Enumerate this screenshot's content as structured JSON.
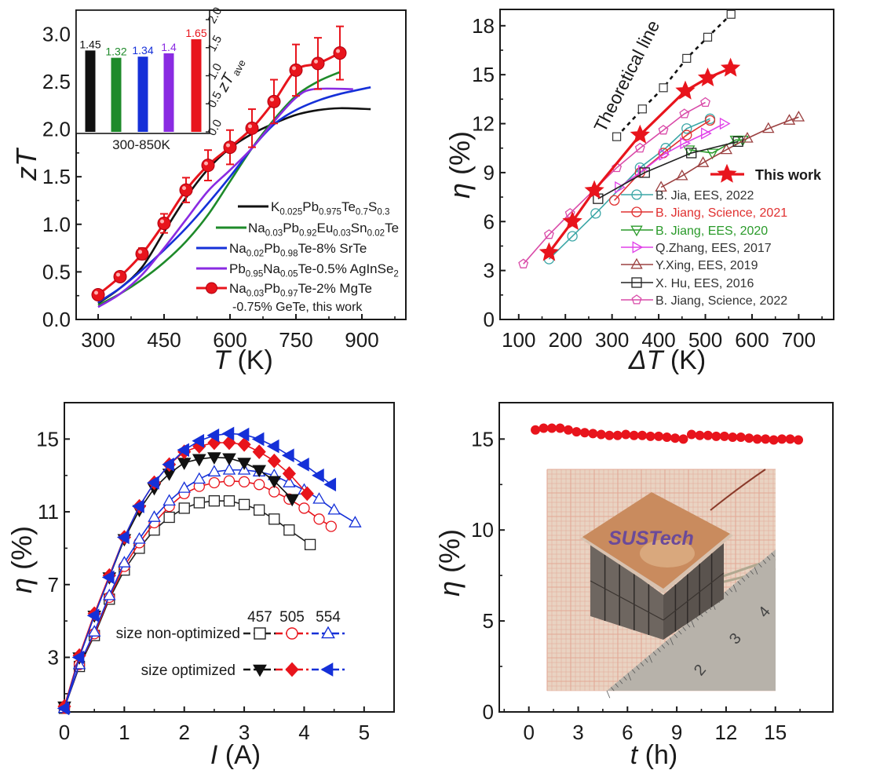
{
  "chart_data": [
    {
      "type": "line",
      "xlabel": "T (K)",
      "ylabel": "zT",
      "xlim": [
        250,
        1000
      ],
      "ylim": [
        0,
        3.25
      ],
      "xticks": [
        300,
        450,
        600,
        750,
        900
      ],
      "xtick_labels": [
        "300",
        "450",
        "600",
        "750",
        "900"
      ],
      "yticks": [
        0,
        0.5,
        1,
        1.5,
        2,
        2.5,
        3
      ],
      "ytick_labels": [
        "0.0",
        "0.5",
        "1.0",
        "1.5",
        "2.0",
        "2.5",
        "3.0"
      ],
      "grid": false,
      "legend_placement": "bottom-right",
      "series": [
        {
          "name": "K0.025Pb0.975Te0.7S0.3",
          "color": "#111111",
          "style": "line",
          "x": [
            300,
            350,
            400,
            450,
            500,
            550,
            600,
            650,
            700,
            750,
            800,
            850,
            920
          ],
          "y": [
            0.17,
            0.33,
            0.55,
            0.92,
            1.28,
            1.58,
            1.8,
            1.95,
            2.06,
            2.15,
            2.2,
            2.22,
            2.21
          ]
        },
        {
          "name": "Na0.03Pb0.92Eu0.03Sn0.02Te",
          "color": "#1e8a2a",
          "style": "line",
          "x": [
            300,
            350,
            400,
            450,
            500,
            550,
            600,
            650,
            700,
            750,
            800,
            850
          ],
          "y": [
            0.15,
            0.27,
            0.42,
            0.6,
            0.82,
            1.1,
            1.45,
            1.8,
            2.1,
            2.35,
            2.5,
            2.6
          ]
        },
        {
          "name": "Na0.02Pb0.98Te-8% SrTe",
          "color": "#1530d8",
          "style": "line",
          "x": [
            300,
            350,
            400,
            450,
            500,
            550,
            600,
            650,
            700,
            750,
            800,
            850,
            920
          ],
          "y": [
            0.18,
            0.33,
            0.52,
            0.73,
            0.96,
            1.22,
            1.5,
            1.8,
            2.05,
            2.2,
            2.3,
            2.37,
            2.44
          ]
        },
        {
          "name": "Pb0.95Na0.05Te-0.5% AgInSe2",
          "color": "#8a2be2",
          "style": "line",
          "x": [
            300,
            350,
            400,
            450,
            500,
            550,
            600,
            650,
            700,
            750,
            790,
            880
          ],
          "y": [
            0.13,
            0.27,
            0.47,
            0.75,
            1.05,
            1.35,
            1.57,
            1.8,
            2.08,
            2.33,
            2.42,
            2.42
          ]
        },
        {
          "name": "Na0.03Pb0.97Te-2% MgTe",
          "name_line2": "-0.75% GeTe, this work",
          "color": "#e8141c",
          "style": "line-marker",
          "marker": "circle",
          "x": [
            300,
            350,
            400,
            450,
            500,
            550,
            600,
            650,
            700,
            750,
            800,
            850
          ],
          "y": [
            0.26,
            0.45,
            0.69,
            1.01,
            1.36,
            1.62,
            1.81,
            2.01,
            2.29,
            2.62,
            2.69,
            2.8
          ],
          "error": [
            0.03,
            0.04,
            0.06,
            0.1,
            0.13,
            0.16,
            0.18,
            0.2,
            0.23,
            0.27,
            0.27,
            0.28
          ]
        }
      ],
      "inset": {
        "type": "bar",
        "xlabel": "300-850K",
        "ylabel_main": "zT",
        "ylabel_sub": "ave",
        "ylim": [
          0,
          2.0
        ],
        "yticks": [
          0,
          0.5,
          1,
          1.5,
          2
        ],
        "ytick_labels": [
          "0.0",
          "0.5",
          "1.0",
          "1.5",
          "2.0"
        ],
        "values": [
          1.45,
          1.32,
          1.34,
          1.4,
          1.65
        ],
        "value_labels": [
          "1.45",
          "1.32",
          "1.34",
          "1.4",
          "1.65"
        ],
        "colors": [
          "#111111",
          "#1e8a2a",
          "#1530d8",
          "#8a2be2",
          "#e8141c"
        ]
      }
    },
    {
      "type": "line",
      "xlabel": "ΔT (K)",
      "ylabel": "η (%)",
      "xlim": [
        60,
        775
      ],
      "ylim": [
        0,
        19
      ],
      "xticks": [
        100,
        200,
        300,
        400,
        500,
        600,
        700
      ],
      "xtick_labels": [
        "100",
        "200",
        "300",
        "400",
        "500",
        "600",
        "700"
      ],
      "yticks": [
        0,
        3,
        6,
        9,
        12,
        15,
        18
      ],
      "ytick_labels": [
        "0",
        "3",
        "6",
        "9",
        "12",
        "15",
        "18"
      ],
      "grid": false,
      "legend_placement": "bottom-right",
      "annotation": "Theoretical line",
      "theoretical": {
        "color": "#111111",
        "marker": "square",
        "x": [
          310,
          365,
          410,
          460,
          505,
          555
        ],
        "y": [
          11.2,
          12.9,
          14.2,
          16.0,
          17.3,
          18.7
        ]
      },
      "series": [
        {
          "name": "This work",
          "color": "#e8141c",
          "marker": "star",
          "filled": true,
          "label_color": "#111111",
          "x": [
            165,
            215,
            262,
            360,
            457,
            505,
            554
          ],
          "y": [
            4.1,
            6.0,
            7.9,
            11.3,
            14.0,
            14.8,
            15.4
          ]
        },
        {
          "name": "B. Jia, EES, 2022",
          "color": "#3aa6a6",
          "marker": "circle",
          "label_color": "#333333",
          "x": [
            165,
            215,
            265,
            360,
            415,
            460,
            510
          ],
          "y": [
            3.7,
            5.1,
            6.5,
            9.3,
            10.5,
            11.7,
            12.3
          ]
        },
        {
          "name": "B. Jiang, Science, 2021",
          "color": "#e03030",
          "marker": "circle",
          "label_color": "#e03030",
          "x": [
            305,
            360,
            410,
            460,
            510
          ],
          "y": [
            7.3,
            9.0,
            10.2,
            11.3,
            12.2
          ]
        },
        {
          "name": "B. Jiang, EES, 2020",
          "color": "#2a9a2a",
          "marker": "tri-down",
          "label_color": "#2a9a2a",
          "x": [
            465,
            515,
            565,
            580
          ],
          "y": [
            10.4,
            10.2,
            11.0,
            11.0
          ]
        },
        {
          "name": "Q.Zhang, EES, 2017",
          "color": "#e040e8",
          "marker": "tri-right",
          "label_color": "#333333",
          "x": [
            315,
            365,
            410,
            455,
            500,
            540
          ],
          "y": [
            8.1,
            9.1,
            10.1,
            10.8,
            11.4,
            12.0
          ]
        },
        {
          "name": "Y.Xing, EES, 2019",
          "color": "#9b4040",
          "marker": "tri-up",
          "label_color": "#333333",
          "x": [
            405,
            450,
            495,
            545,
            590,
            635,
            680,
            700
          ],
          "y": [
            8.1,
            8.8,
            9.6,
            10.4,
            11.1,
            11.7,
            12.2,
            12.4
          ]
        },
        {
          "name": "X. Hu, EES, 2016",
          "color": "#222222",
          "marker": "square",
          "label_color": "#333333",
          "x": [
            270,
            370,
            470,
            570
          ],
          "y": [
            7.4,
            9.0,
            10.2,
            10.9
          ]
        },
        {
          "name": "B. Jiang, Science, 2022",
          "color": "#d94aa8",
          "marker": "pentagon",
          "label_color": "#333333",
          "x": [
            110,
            165,
            210,
            310,
            360,
            410,
            455,
            500
          ],
          "y": [
            3.4,
            5.2,
            6.5,
            9.3,
            10.5,
            11.6,
            12.6,
            13.3
          ]
        }
      ]
    },
    {
      "type": "line",
      "xlabel": "I (A)",
      "ylabel": "η (%)",
      "xlim": [
        0,
        5.5
      ],
      "ylim": [
        0,
        17
      ],
      "xticks": [
        0,
        1,
        2,
        3,
        4,
        5
      ],
      "xtick_labels": [
        "0",
        "1",
        "2",
        "3",
        "4",
        "5"
      ],
      "yticks": [
        3,
        7,
        11,
        15
      ],
      "ytick_labels": [
        "3",
        "7",
        "11",
        "15"
      ],
      "grid": false,
      "legend_placement": "bottom-right",
      "legend": {
        "row1": "size non-optimized",
        "row2": "size optimized",
        "columns": [
          "457",
          "505",
          "554"
        ]
      },
      "series": [
        {
          "group": "size non-optimized",
          "dT": "457",
          "color": "#222222",
          "marker": "square",
          "filled": false,
          "x": [
            0,
            0.25,
            0.5,
            0.75,
            1,
            1.25,
            1.5,
            1.75,
            2,
            2.25,
            2.5,
            2.75,
            3,
            3.25,
            3.5,
            3.75,
            4.1
          ],
          "y": [
            0.2,
            2.5,
            4.2,
            6.2,
            7.8,
            9.0,
            10.0,
            10.7,
            11.2,
            11.5,
            11.6,
            11.6,
            11.4,
            11.1,
            10.6,
            10.0,
            9.2
          ]
        },
        {
          "group": "size non-optimized",
          "dT": "505",
          "color": "#e8141c",
          "marker": "circle",
          "filled": false,
          "x": [
            0,
            0.25,
            0.5,
            0.75,
            1,
            1.25,
            1.5,
            1.75,
            2,
            2.25,
            2.5,
            2.75,
            3,
            3.25,
            3.5,
            3.75,
            4,
            4.25,
            4.45
          ],
          "y": [
            0.2,
            2.6,
            4.3,
            6.3,
            8.0,
            9.3,
            10.4,
            11.3,
            12.0,
            12.4,
            12.6,
            12.7,
            12.65,
            12.5,
            12.1,
            11.7,
            11.2,
            10.6,
            10.2
          ]
        },
        {
          "group": "size non-optimized",
          "dT": "554",
          "color": "#1530d8",
          "marker": "tri-up",
          "filled": false,
          "x": [
            0,
            0.25,
            0.5,
            0.75,
            1,
            1.25,
            1.5,
            1.75,
            2,
            2.25,
            2.5,
            2.75,
            3,
            3.25,
            3.5,
            3.75,
            4,
            4.25,
            4.5,
            4.85
          ],
          "y": [
            0.2,
            2.6,
            4.4,
            6.4,
            8.2,
            9.5,
            10.7,
            11.6,
            12.3,
            12.8,
            13.2,
            13.3,
            13.3,
            13.2,
            13.0,
            12.6,
            12.2,
            11.7,
            11.1,
            10.4
          ]
        },
        {
          "group": "size optimized",
          "dT": "457",
          "color": "#111111",
          "marker": "tri-down",
          "filled": true,
          "x": [
            0,
            0.25,
            0.5,
            0.75,
            1,
            1.25,
            1.5,
            1.75,
            2,
            2.25,
            2.5,
            2.75,
            3,
            3.25,
            3.5,
            3.8
          ],
          "y": [
            0.3,
            3.0,
            5.3,
            7.4,
            9.5,
            11.1,
            12.3,
            13.1,
            13.7,
            13.9,
            14.0,
            13.95,
            13.7,
            13.3,
            12.7,
            11.7
          ]
        },
        {
          "group": "size optimized",
          "dT": "505",
          "color": "#e8141c",
          "marker": "diamond",
          "filled": true,
          "x": [
            0,
            0.25,
            0.5,
            0.75,
            1,
            1.25,
            1.5,
            1.75,
            2,
            2.25,
            2.5,
            2.75,
            3,
            3.25,
            3.5,
            3.75,
            4.05
          ],
          "y": [
            0.3,
            3.1,
            5.4,
            7.5,
            9.6,
            11.3,
            12.6,
            13.6,
            14.3,
            14.6,
            14.8,
            14.8,
            14.7,
            14.3,
            13.8,
            13.1,
            12.0
          ]
        },
        {
          "group": "size optimized",
          "dT": "554",
          "color": "#1530d8",
          "marker": "tri-left",
          "filled": true,
          "x": [
            0,
            0.25,
            0.5,
            0.75,
            1,
            1.25,
            1.5,
            1.75,
            2,
            2.25,
            2.5,
            2.75,
            3,
            3.25,
            3.5,
            3.75,
            4,
            4.25,
            4.45
          ],
          "y": [
            0.2,
            3.0,
            5.3,
            7.4,
            9.6,
            11.3,
            12.6,
            13.6,
            14.4,
            14.9,
            15.2,
            15.3,
            15.25,
            15.0,
            14.6,
            14.1,
            13.6,
            13.0,
            12.5
          ]
        }
      ]
    },
    {
      "type": "scatter",
      "xlabel": "t (h)",
      "ylabel": "η (%)",
      "xlim": [
        -1.8,
        18.5
      ],
      "ylim": [
        0,
        17
      ],
      "xticks": [
        0,
        3,
        6,
        9,
        12,
        15
      ],
      "xtick_labels": [
        "0",
        "3",
        "6",
        "9",
        "12",
        "15"
      ],
      "yticks": [
        0,
        5,
        10,
        15
      ],
      "ytick_labels": [
        "0",
        "5",
        "10",
        "15"
      ],
      "grid": false,
      "series": [
        {
          "color": "#e8141c",
          "marker": "circle",
          "filled": true,
          "x": [
            0.4,
            0.9,
            1.4,
            1.9,
            2.4,
            2.9,
            3.4,
            3.9,
            4.4,
            4.9,
            5.4,
            5.9,
            6.4,
            6.9,
            7.4,
            7.9,
            8.4,
            8.9,
            9.4,
            9.9,
            10.4,
            10.9,
            11.4,
            11.9,
            12.4,
            12.9,
            13.4,
            13.9,
            14.4,
            14.9,
            15.4,
            15.9,
            16.4
          ],
          "y": [
            15.5,
            15.6,
            15.6,
            15.6,
            15.5,
            15.4,
            15.35,
            15.3,
            15.25,
            15.2,
            15.2,
            15.25,
            15.2,
            15.2,
            15.15,
            15.15,
            15.1,
            15.05,
            15.0,
            15.25,
            15.2,
            15.2,
            15.15,
            15.15,
            15.1,
            15.1,
            15.05,
            15.0,
            15.0,
            14.95,
            15.0,
            15.0,
            14.95
          ]
        }
      ],
      "photo_inset": {
        "module_label": "SUSTech",
        "ruler_numbers": [
          "2",
          "3",
          "4"
        ]
      }
    }
  ]
}
